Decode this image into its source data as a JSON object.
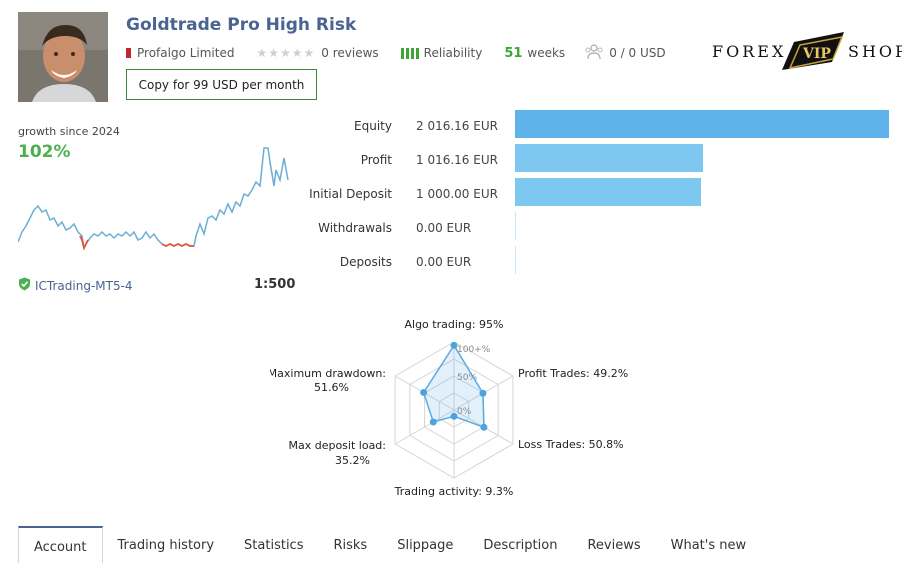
{
  "header": {
    "title": "Goldtrade Pro High Risk",
    "provider": "Profalgo Limited",
    "reviews": "0 reviews",
    "reliability": "Reliability",
    "weeks_value": "51",
    "weeks_label": "weeks",
    "subscribers": "0 / 0 USD",
    "copy_button": "Copy for 99 USD per month"
  },
  "logo": {
    "left": "FOREX",
    "badge": "VIP",
    "right": "SHOP"
  },
  "growth": {
    "label": "growth since 2024",
    "value": "102%"
  },
  "account": {
    "server": "ICTrading-MT5-4",
    "leverage": "1:500"
  },
  "stats": [
    {
      "label": "Equity",
      "value": "2 016.16 EUR",
      "amount": 2016.16
    },
    {
      "label": "Profit",
      "value": "1 016.16 EUR",
      "amount": 1016.16
    },
    {
      "label": "Initial Deposit",
      "value": "1 000.00 EUR",
      "amount": 1000.0
    },
    {
      "label": "Withdrawals",
      "value": "0.00 EUR",
      "amount": 0
    },
    {
      "label": "Deposits",
      "value": "0.00 EUR",
      "amount": 0
    }
  ],
  "radar": {
    "scale_labels": [
      "100+%",
      "50%",
      "0%"
    ],
    "axes": [
      {
        "label": "Algo trading: 95%",
        "value": 95
      },
      {
        "label": "Profit Trades: 49.2%",
        "value": 49.2
      },
      {
        "label": "Loss Trades: 50.8%",
        "value": 50.8
      },
      {
        "label": "Trading activity: 9.3%",
        "value": 9.3
      },
      {
        "label": "Max deposit load:",
        "label2": "35.2%",
        "value": 35.2
      },
      {
        "label": "Maximum drawdown:",
        "label2": "51.6%",
        "value": 51.6
      }
    ]
  },
  "tabs": [
    {
      "label": "Account",
      "active": true
    },
    {
      "label": "Trading history"
    },
    {
      "label": "Statistics"
    },
    {
      "label": "Risks"
    },
    {
      "label": "Slippage"
    },
    {
      "label": "Description"
    },
    {
      "label": "Reviews"
    },
    {
      "label": "What's new"
    }
  ],
  "colors": {
    "accent_blue": "#4a6491",
    "green": "#4caf50",
    "bar_blue": "#7dc7f0",
    "growth_line": "#6aaed6",
    "drawdown": "#e2553a"
  }
}
